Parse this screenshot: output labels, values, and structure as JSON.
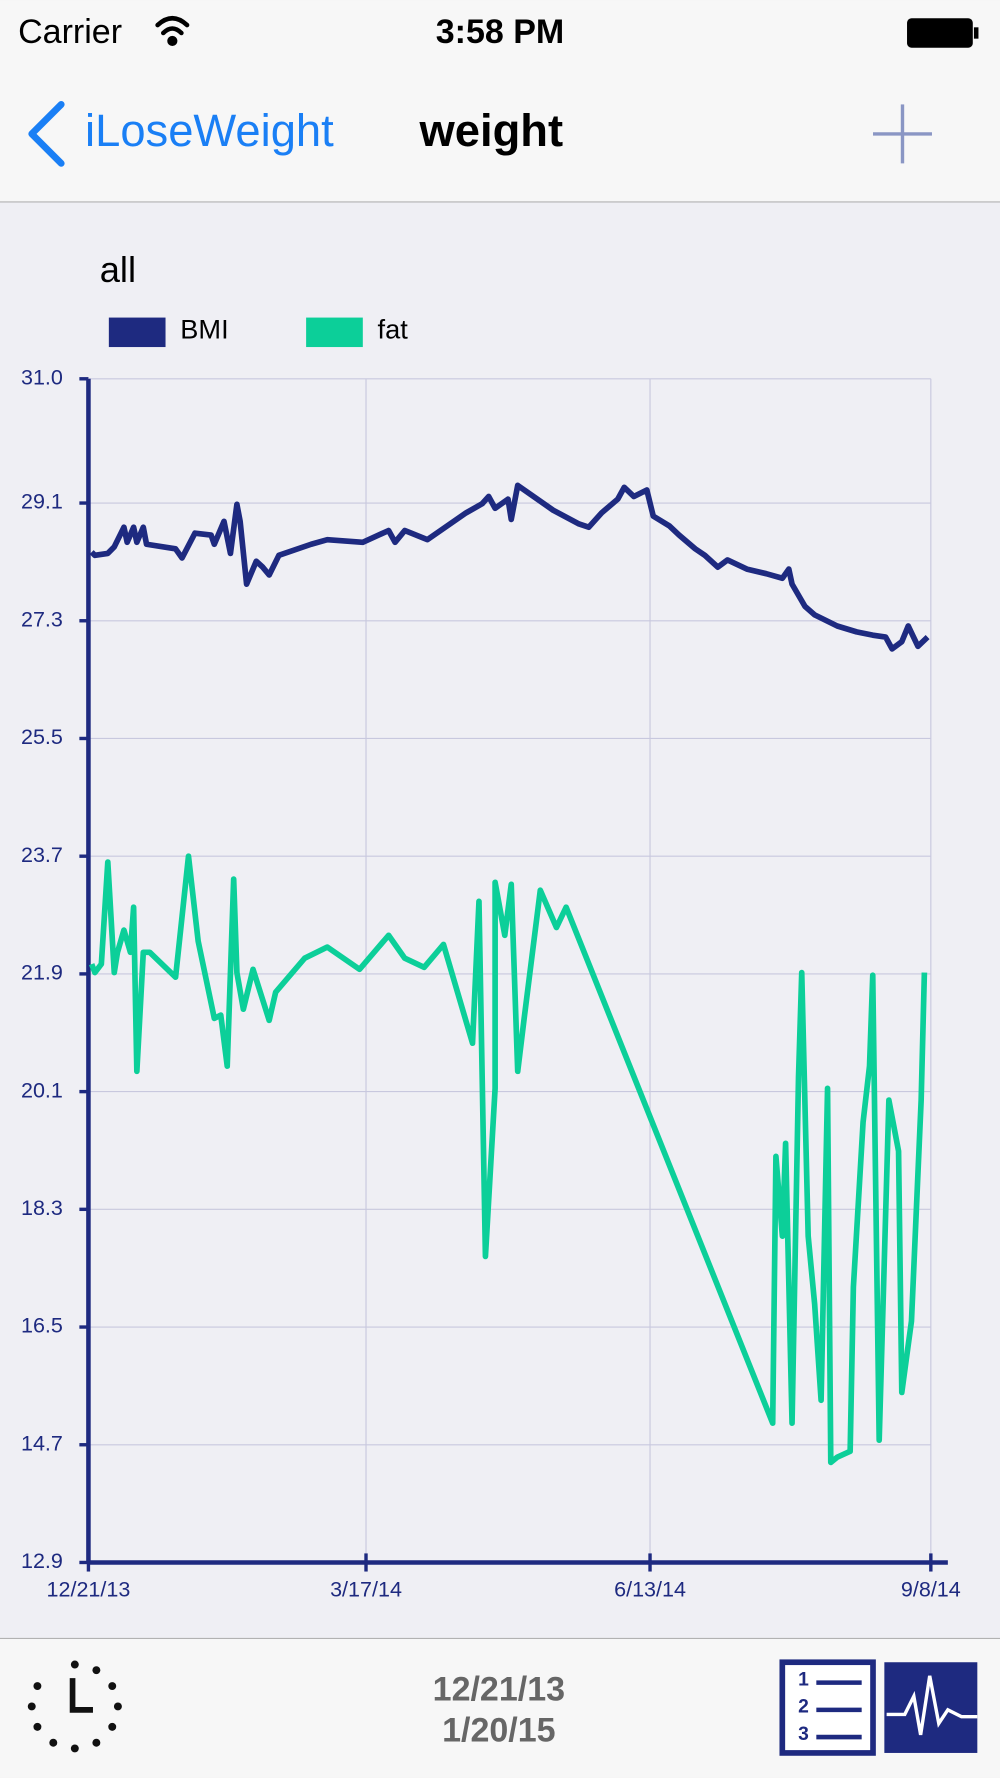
{
  "status_bar": {
    "carrier": "Carrier",
    "time": "3:58 PM"
  },
  "nav_bar": {
    "back": "iLoseWeight",
    "title": "weight"
  },
  "toolbar": {
    "range_start": "12/21/13",
    "range_end": "1/20/15"
  },
  "chart_data": {
    "type": "line",
    "title": "all",
    "xlim": [
      "2013-12-21",
      "2014-09-08"
    ],
    "xticks": [
      {
        "value": "2013-12-21",
        "label": "12/21/13"
      },
      {
        "value": "2014-03-17",
        "label": "3/17/14"
      },
      {
        "value": "2014-06-13",
        "label": "6/13/14"
      },
      {
        "value": "2014-09-08",
        "label": "9/8/14"
      }
    ],
    "ylim": [
      12.9,
      31.0
    ],
    "yticks": [
      12.9,
      14.7,
      16.5,
      18.3,
      20.1,
      21.9,
      23.7,
      25.5,
      27.3,
      29.1,
      {
        "value": 31,
        "label": "31.0"
      }
    ],
    "grid": true,
    "series": [
      {
        "name": "BMI",
        "color": "#1e2a80",
        "x": [
          "2013-12-22",
          "2013-12-23",
          "2013-12-27",
          "2013-12-29",
          "2014-01-01",
          "2014-01-02",
          "2014-01-04",
          "2014-01-05",
          "2014-01-07",
          "2014-01-08",
          "2014-01-17",
          "2014-01-19",
          "2014-01-23",
          "2014-01-28",
          "2014-01-29",
          "2014-02-01",
          "2014-02-03",
          "2014-02-05",
          "2014-02-06",
          "2014-02-08",
          "2014-02-11",
          "2014-02-13",
          "2014-02-15",
          "2014-02-18",
          "2014-02-28",
          "2014-03-05",
          "2014-03-16",
          "2014-03-24",
          "2014-03-26",
          "2014-03-29",
          "2014-04-05",
          "2014-04-17",
          "2014-04-22",
          "2014-04-24",
          "2014-04-26",
          "2014-04-30",
          "2014-05-01",
          "2014-05-03",
          "2014-05-05",
          "2014-05-14",
          "2014-05-22",
          "2014-05-25",
          "2014-05-29",
          "2014-06-03",
          "2014-06-05",
          "2014-06-08",
          "2014-06-12",
          "2014-06-14",
          "2014-06-19",
          "2014-06-22",
          "2014-06-27",
          "2014-06-30",
          "2014-07-04",
          "2014-07-07",
          "2014-07-13",
          "2014-07-19",
          "2014-07-24",
          "2014-07-26",
          "2014-07-27",
          "2014-07-31",
          "2014-08-03",
          "2014-08-10",
          "2014-08-16",
          "2014-08-21",
          "2014-08-25",
          "2014-08-27",
          "2014-08-30",
          "2014-09-01",
          "2014-09-04",
          "2014-09-07"
        ],
        "values": [
          28.35,
          28.3,
          28.33,
          28.43,
          28.73,
          28.5,
          28.73,
          28.5,
          28.73,
          28.47,
          28.4,
          28.26,
          28.64,
          28.61,
          28.47,
          28.82,
          28.33,
          29.08,
          28.82,
          27.86,
          28.21,
          28.12,
          28.0,
          28.3,
          28.47,
          28.54,
          28.5,
          28.68,
          28.5,
          28.68,
          28.54,
          28.95,
          29.09,
          29.2,
          29.02,
          29.16,
          28.85,
          29.37,
          29.3,
          28.99,
          28.78,
          28.73,
          28.95,
          29.16,
          29.34,
          29.2,
          29.3,
          28.9,
          28.75,
          28.61,
          28.4,
          28.3,
          28.12,
          28.23,
          28.09,
          28.02,
          27.95,
          28.09,
          27.86,
          27.52,
          27.39,
          27.22,
          27.13,
          27.08,
          27.05,
          26.87,
          26.98,
          27.22,
          26.91,
          27.05
        ]
      },
      {
        "name": "fat",
        "color": "#0ccf99",
        "x": [
          "2013-12-22",
          "2013-12-23",
          "2013-12-25",
          "2013-12-27",
          "2013-12-29",
          "2013-12-30",
          "2014-01-01",
          "2014-01-03",
          "2014-01-04",
          "2014-01-05",
          "2014-01-07",
          "2014-01-09",
          "2014-01-17",
          "2014-01-21",
          "2014-01-24",
          "2014-01-29",
          "2014-01-31",
          "2014-02-02",
          "2014-02-04",
          "2014-02-05",
          "2014-02-07",
          "2014-02-10",
          "2014-02-15",
          "2014-02-17",
          "2014-02-26",
          "2014-03-05",
          "2014-03-15",
          "2014-03-24",
          "2014-03-29",
          "2014-04-04",
          "2014-04-10",
          "2014-04-19",
          "2014-04-21",
          "2014-04-23",
          "2014-04-26",
          "2014-04-26",
          "2014-04-29",
          "2014-05-01",
          "2014-05-03",
          "2014-05-05",
          "2014-05-10",
          "2014-05-15",
          "2014-05-18",
          "2014-07-21",
          "2014-07-22",
          "2014-07-24",
          "2014-07-25",
          "2014-07-27",
          "2014-07-29",
          "2014-07-30",
          "2014-08-01",
          "2014-08-03",
          "2014-08-05",
          "2014-08-07",
          "2014-08-08",
          "2014-08-10",
          "2014-08-14",
          "2014-08-15",
          "2014-08-18",
          "2014-08-20",
          "2014-08-21",
          "2014-08-23",
          "2014-08-26",
          "2014-08-29",
          "2014-08-30",
          "2014-09-02",
          "2014-09-05",
          "2014-09-06"
        ],
        "values": [
          22.05,
          21.92,
          22.05,
          23.61,
          21.92,
          22.23,
          22.57,
          22.23,
          22.92,
          20.41,
          22.23,
          22.23,
          21.85,
          23.7,
          22.4,
          21.22,
          21.27,
          20.49,
          23.35,
          21.92,
          21.36,
          21.97,
          21.19,
          21.62,
          22.14,
          22.31,
          21.97,
          22.49,
          22.14,
          22.0,
          22.35,
          20.84,
          23.01,
          17.58,
          20.15,
          23.3,
          22.49,
          23.27,
          20.41,
          21.22,
          23.18,
          22.61,
          22.92,
          15.03,
          19.11,
          17.89,
          19.31,
          15.03,
          20.32,
          21.92,
          17.89,
          16.85,
          15.38,
          20.15,
          14.43,
          14.51,
          14.6,
          17.11,
          19.63,
          20.49,
          21.88,
          14.77,
          19.97,
          19.19,
          15.5,
          16.59,
          19.97,
          21.92
        ]
      }
    ]
  }
}
